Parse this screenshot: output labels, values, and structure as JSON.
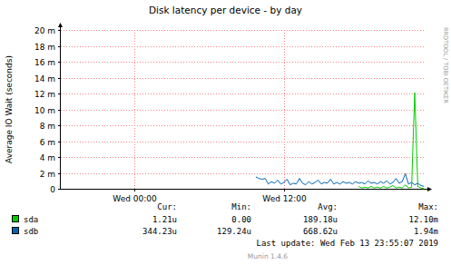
{
  "chart_data": {
    "type": "line",
    "title": "Disk latency per device - by day",
    "y_label": "Average IO Wait (seconds)",
    "x": [
      9.75,
      10,
      10.25,
      10.5,
      10.75,
      11,
      11.25,
      11.5,
      11.75,
      12,
      12.25,
      12.5,
      12.75,
      13,
      13.25,
      13.5,
      13.75,
      14,
      14.25,
      14.5,
      14.75,
      15,
      15.25,
      15.5,
      15.75,
      16,
      16.25,
      16.5,
      16.75,
      17,
      17.25,
      17.5,
      17.75,
      18,
      18.25,
      18.5,
      18.75,
      19,
      19.25,
      19.5,
      19.75,
      20,
      20.25,
      20.5,
      20.75,
      21,
      21.25,
      21.5,
      21.75,
      22,
      22.25,
      22.5,
      22.75,
      23,
      23.25
    ],
    "series": [
      {
        "name": "sda",
        "color": "#00cc00",
        "values": [
          null,
          null,
          null,
          null,
          null,
          null,
          null,
          null,
          null,
          null,
          null,
          null,
          null,
          null,
          null,
          null,
          null,
          null,
          null,
          null,
          null,
          null,
          null,
          null,
          null,
          null,
          null,
          null,
          null,
          null,
          null,
          null,
          null,
          0.0003,
          0.0001,
          0.0002,
          0.0001,
          0.0003,
          0.0001,
          0.0002,
          0.0001,
          0.0003,
          0.0001,
          0.0002,
          0.0004,
          0.0001,
          0.0002,
          0.0001,
          0.0005,
          0.0001,
          0.0002,
          0.0121,
          0.0003,
          0.0001,
          1.2e-06
        ]
      },
      {
        "name": "sdb",
        "color": "#0066b3",
        "values": [
          0.0015,
          0.0013,
          0.0012,
          0.0013,
          0.0006,
          0.0009,
          0.0007,
          0.0011,
          0.0006,
          0.0008,
          0.0012,
          0.0005,
          0.0007,
          0.0006,
          0.0013,
          0.0007,
          0.0005,
          0.0009,
          0.0006,
          0.0008,
          0.0011,
          0.0006,
          0.0008,
          0.0007,
          0.0012,
          0.0006,
          0.0008,
          0.0006,
          0.0009,
          0.0007,
          0.0008,
          0.0006,
          0.0009,
          0.0007,
          0.0008,
          0.0006,
          0.001,
          0.0007,
          0.0008,
          0.0006,
          0.0009,
          0.0007,
          0.001,
          0.0006,
          0.0008,
          0.0013,
          0.0007,
          0.0009,
          0.0019,
          0.0006,
          0.0008,
          0.0005,
          0.0007,
          0.0004,
          0.0003
        ]
      }
    ],
    "xlim": [
      -5.9,
      23.3
    ],
    "xticks": [
      {
        "value": 0,
        "label": "Wed 00:00"
      },
      {
        "value": 12,
        "label": "Wed 12:00"
      }
    ],
    "ylim": [
      0,
      0.02
    ],
    "yticks": [
      0,
      {
        "value": 0.002,
        "label": "2 m"
      },
      {
        "value": 0.004,
        "label": "4 m"
      },
      {
        "value": 0.006,
        "label": "6 m"
      },
      {
        "value": 0.008,
        "label": "8 m"
      },
      {
        "value": 0.01,
        "label": "10 m"
      },
      {
        "value": 0.012,
        "label": "12 m"
      },
      {
        "value": 0.014,
        "label": "14 m"
      },
      {
        "value": 0.016,
        "label": "16 m"
      },
      {
        "value": 0.018,
        "label": "18 m"
      },
      {
        "value": 0.02,
        "label": "20 m"
      }
    ],
    "grid": true,
    "legend": "bottom",
    "stats": {
      "headers": [
        "Cur:",
        "Min:",
        "Avg:",
        "Max:"
      ],
      "rows": [
        [
          "1.21u",
          "0.00",
          "189.18u",
          "12.10m"
        ],
        [
          "344.23u",
          "129.24u",
          "668.62u",
          "1.94m"
        ]
      ]
    },
    "last_update": "Last update: Wed Feb 13 23:55:07 2019",
    "version": "Munin 1.4.6",
    "watermark": "RRDTOOL / TOBI OETIKER"
  }
}
